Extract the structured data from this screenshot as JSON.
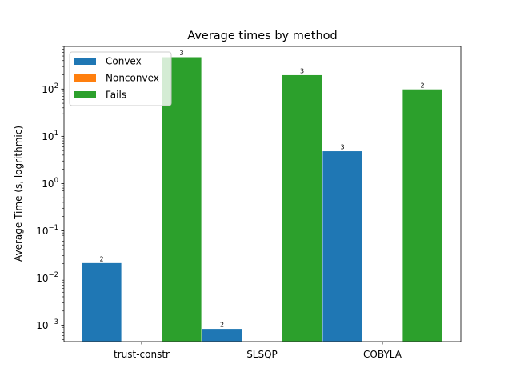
{
  "chart_data": {
    "type": "bar",
    "title": "Average times by method",
    "xlabel": "",
    "ylabel": "Average Time (s, logrithmic)",
    "yscale": "log",
    "ylim": [
      0.00045,
      800
    ],
    "categories": [
      "trust-constr",
      "SLSQP",
      "COBYLA"
    ],
    "series": [
      {
        "name": "Convex",
        "color": "#1f77b4",
        "values": [
          0.021,
          0.00085,
          4.9
        ],
        "counts": [
          "2",
          "2",
          "3"
        ]
      },
      {
        "name": "Nonconvex",
        "color": "#ff7f0e",
        "values": [
          null,
          null,
          null
        ],
        "counts": [
          null,
          null,
          null
        ]
      },
      {
        "name": "Fails",
        "color": "#2ca02c",
        "values": [
          480,
          200,
          100
        ],
        "counts": [
          "3",
          "3",
          "2"
        ]
      }
    ],
    "yticks": [
      {
        "value": 0.001,
        "base": "10",
        "exp": "−3"
      },
      {
        "value": 0.01,
        "base": "10",
        "exp": "−2"
      },
      {
        "value": 0.1,
        "base": "10",
        "exp": "−1"
      },
      {
        "value": 1,
        "base": "10",
        "exp": "0"
      },
      {
        "value": 10,
        "base": "10",
        "exp": "1"
      },
      {
        "value": 100,
        "base": "10",
        "exp": "2"
      }
    ],
    "legend": {
      "location": "upper-left"
    },
    "grid": false
  }
}
